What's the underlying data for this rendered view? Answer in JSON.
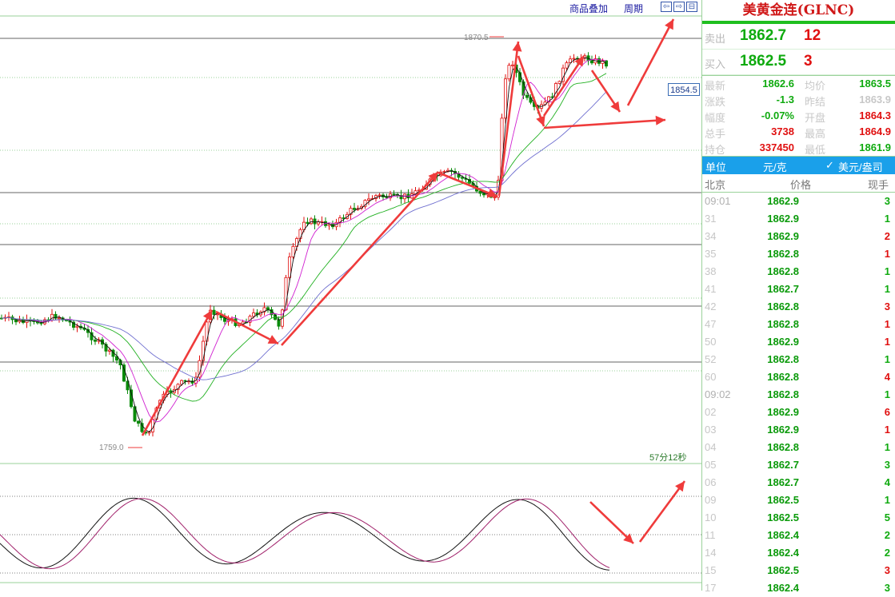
{
  "toolbar": {
    "overlay_label": "商品叠加",
    "period_label": "周期",
    "nav_buttons": [
      "⇦",
      "⇨",
      "⊟"
    ]
  },
  "chart": {
    "current_price_tag": "1854.5",
    "high_annotation": "1870.5",
    "low_annotation": "1759.0",
    "countdown": "57分12秒"
  },
  "chart_data": {
    "type": "candlestick",
    "title": "美黄金连(GLNC)",
    "high_marker": 1870.5,
    "low_marker": 1759.0,
    "last_price_tag": 1854.5
  },
  "panel": {
    "title": "美黄金连(GLNC)",
    "sell": {
      "label": "卖出",
      "price": "1862.7",
      "volume": "12"
    },
    "buy": {
      "label": "买入",
      "price": "1862.5",
      "volume": "3"
    },
    "stats": [
      {
        "l1": "最新",
        "v1": "1862.6",
        "c1": "green",
        "l2": "均价",
        "v2": "1863.5",
        "c2": "green"
      },
      {
        "l1": "涨跌",
        "v1": "-1.3",
        "c1": "green",
        "l2": "昨结",
        "v2": "1863.9",
        "c2": "grayv"
      },
      {
        "l1": "幅度",
        "v1": "-0.07%",
        "c1": "green",
        "l2": "开盘",
        "v2": "1864.3",
        "c2": "red"
      },
      {
        "l1": "总手",
        "v1": "3738",
        "c1": "red",
        "l2": "最高",
        "v2": "1864.9",
        "c2": "red"
      },
      {
        "l1": "持仓",
        "v1": "337450",
        "c1": "red",
        "l2": "最低",
        "v2": "1861.9",
        "c2": "green"
      }
    ],
    "unit": {
      "label": "单位",
      "value": "元/克",
      "alt": "美元/盎司"
    },
    "tick_header": {
      "time": "北京",
      "price": "价格",
      "volume": "现手"
    },
    "ticks": [
      {
        "time": "09:01",
        "price": "1862.9",
        "vol": "3",
        "vc": "green",
        "major": true
      },
      {
        "time": "31",
        "price": "1862.9",
        "vol": "1",
        "vc": "green"
      },
      {
        "time": "34",
        "price": "1862.9",
        "vol": "2",
        "vc": "red"
      },
      {
        "time": "35",
        "price": "1862.8",
        "vol": "1",
        "vc": "red"
      },
      {
        "time": "38",
        "price": "1862.8",
        "vol": "1",
        "vc": "green"
      },
      {
        "time": "41",
        "price": "1862.7",
        "vol": "1",
        "vc": "green"
      },
      {
        "time": "42",
        "price": "1862.8",
        "vol": "3",
        "vc": "red"
      },
      {
        "time": "47",
        "price": "1862.8",
        "vol": "1",
        "vc": "red"
      },
      {
        "time": "50",
        "price": "1862.9",
        "vol": "1",
        "vc": "red"
      },
      {
        "time": "52",
        "price": "1862.8",
        "vol": "1",
        "vc": "green"
      },
      {
        "time": "60",
        "price": "1862.8",
        "vol": "4",
        "vc": "red"
      },
      {
        "time": "09:02",
        "price": "1862.8",
        "vol": "1",
        "vc": "green",
        "major": true
      },
      {
        "time": "02",
        "price": "1862.9",
        "vol": "6",
        "vc": "red"
      },
      {
        "time": "03",
        "price": "1862.9",
        "vol": "1",
        "vc": "red"
      },
      {
        "time": "04",
        "price": "1862.8",
        "vol": "1",
        "vc": "green"
      },
      {
        "time": "05",
        "price": "1862.7",
        "vol": "3",
        "vc": "green"
      },
      {
        "time": "06",
        "price": "1862.7",
        "vol": "4",
        "vc": "green"
      },
      {
        "time": "09",
        "price": "1862.5",
        "vol": "1",
        "vc": "green"
      },
      {
        "time": "10",
        "price": "1862.5",
        "vol": "5",
        "vc": "green"
      },
      {
        "time": "11",
        "price": "1862.4",
        "vol": "2",
        "vc": "green"
      },
      {
        "time": "14",
        "price": "1862.4",
        "vol": "2",
        "vc": "green"
      },
      {
        "time": "15",
        "price": "1862.5",
        "vol": "3",
        "vc": "red"
      },
      {
        "time": "17",
        "price": "1862.4",
        "vol": "3",
        "vc": "green"
      }
    ]
  },
  "colors": {
    "up": "#e01010",
    "down": "#0a8a0a",
    "arrow": "#ef3b3b",
    "accent": "#1aa0ea"
  }
}
